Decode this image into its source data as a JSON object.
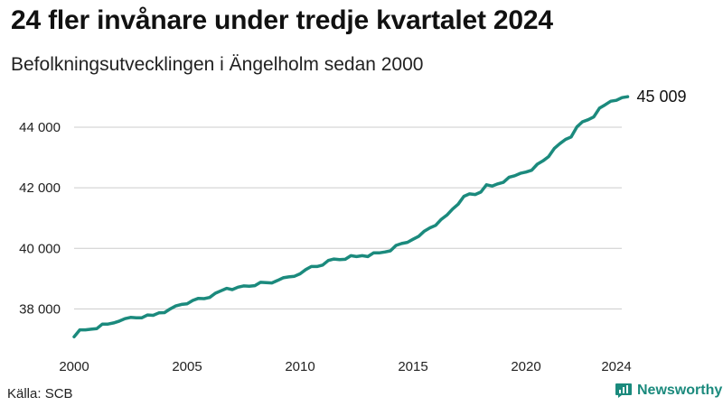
{
  "title": "24 fler invånare under tredje kvartalet 2024",
  "subtitle": "Befolkningsutvecklingen i Ängelholm sedan 2000",
  "source": "Källa: SCB",
  "brand": {
    "name": "Newsworthy",
    "icon": "newsworthy-logo-icon"
  },
  "colors": {
    "line": "#1b8a7d",
    "text": "#111111",
    "grid": "#cccccc"
  },
  "chart_data": {
    "type": "line",
    "xlim": [
      2000,
      2025
    ],
    "ylim": [
      37000,
      45700
    ],
    "x_ticks": [
      2000,
      2005,
      2010,
      2015,
      2020,
      2024
    ],
    "x_tick_labels": [
      "2000",
      "2005",
      "2010",
      "2015",
      "2020",
      "2024"
    ],
    "y_ticks": [
      38000,
      40000,
      42000,
      44000
    ],
    "y_tick_labels": [
      "38 000",
      "40 000",
      "42 000",
      "44 000"
    ],
    "grid": "horizontal",
    "end_label": "45 009",
    "series": [
      {
        "x": [
          2000.0,
          2000.25,
          2000.5,
          2000.75,
          2001.0,
          2001.25,
          2001.5,
          2001.75,
          2002.0,
          2002.25,
          2002.5,
          2002.75,
          2003.0,
          2003.25,
          2003.5,
          2003.75,
          2004.0,
          2004.25,
          2004.5,
          2004.75,
          2005.0,
          2005.25,
          2005.5,
          2005.75,
          2006.0,
          2006.25,
          2006.5,
          2006.75,
          2007.0,
          2007.25,
          2007.5,
          2007.75,
          2008.0,
          2008.25,
          2008.5,
          2008.75,
          2009.0,
          2009.25,
          2009.5,
          2009.75,
          2010.0,
          2010.25,
          2010.5,
          2010.75,
          2011.0,
          2011.25,
          2011.5,
          2011.75,
          2012.0,
          2012.25,
          2012.5,
          2012.75,
          2013.0,
          2013.25,
          2013.5,
          2013.75,
          2014.0,
          2014.25,
          2014.5,
          2014.75,
          2015.0,
          2015.25,
          2015.5,
          2015.75,
          2016.0,
          2016.25,
          2016.5,
          2016.75,
          2017.0,
          2017.25,
          2017.5,
          2017.75,
          2018.0,
          2018.25,
          2018.5,
          2018.75,
          2019.0,
          2019.25,
          2019.5,
          2019.75,
          2020.0,
          2020.25,
          2020.5,
          2020.75,
          2021.0,
          2021.25,
          2021.5,
          2021.75,
          2022.0,
          2022.25,
          2022.5,
          2022.75,
          2023.0,
          2023.25,
          2023.5,
          2023.75,
          2024.0,
          2024.25,
          2024.5
        ],
        "y": [
          37080,
          37310,
          37310,
          37330,
          37350,
          37500,
          37500,
          37540,
          37600,
          37680,
          37720,
          37710,
          37710,
          37800,
          37790,
          37870,
          37880,
          38000,
          38100,
          38150,
          38170,
          38280,
          38350,
          38340,
          38380,
          38520,
          38600,
          38680,
          38640,
          38720,
          38760,
          38750,
          38770,
          38880,
          38870,
          38860,
          38940,
          39030,
          39060,
          39080,
          39160,
          39300,
          39400,
          39400,
          39450,
          39600,
          39650,
          39630,
          39640,
          39760,
          39730,
          39760,
          39730,
          39850,
          39850,
          39880,
          39920,
          40100,
          40160,
          40200,
          40300,
          40400,
          40570,
          40680,
          40760,
          40960,
          41100,
          41300,
          41460,
          41720,
          41800,
          41780,
          41860,
          42100,
          42060,
          42130,
          42180,
          42350,
          42400,
          42480,
          42520,
          42580,
          42780,
          42890,
          43030,
          43300,
          43460,
          43600,
          43680,
          44010,
          44180,
          44250,
          44340,
          44630,
          44740,
          44860,
          44890,
          44980,
          45009
        ]
      }
    ]
  }
}
